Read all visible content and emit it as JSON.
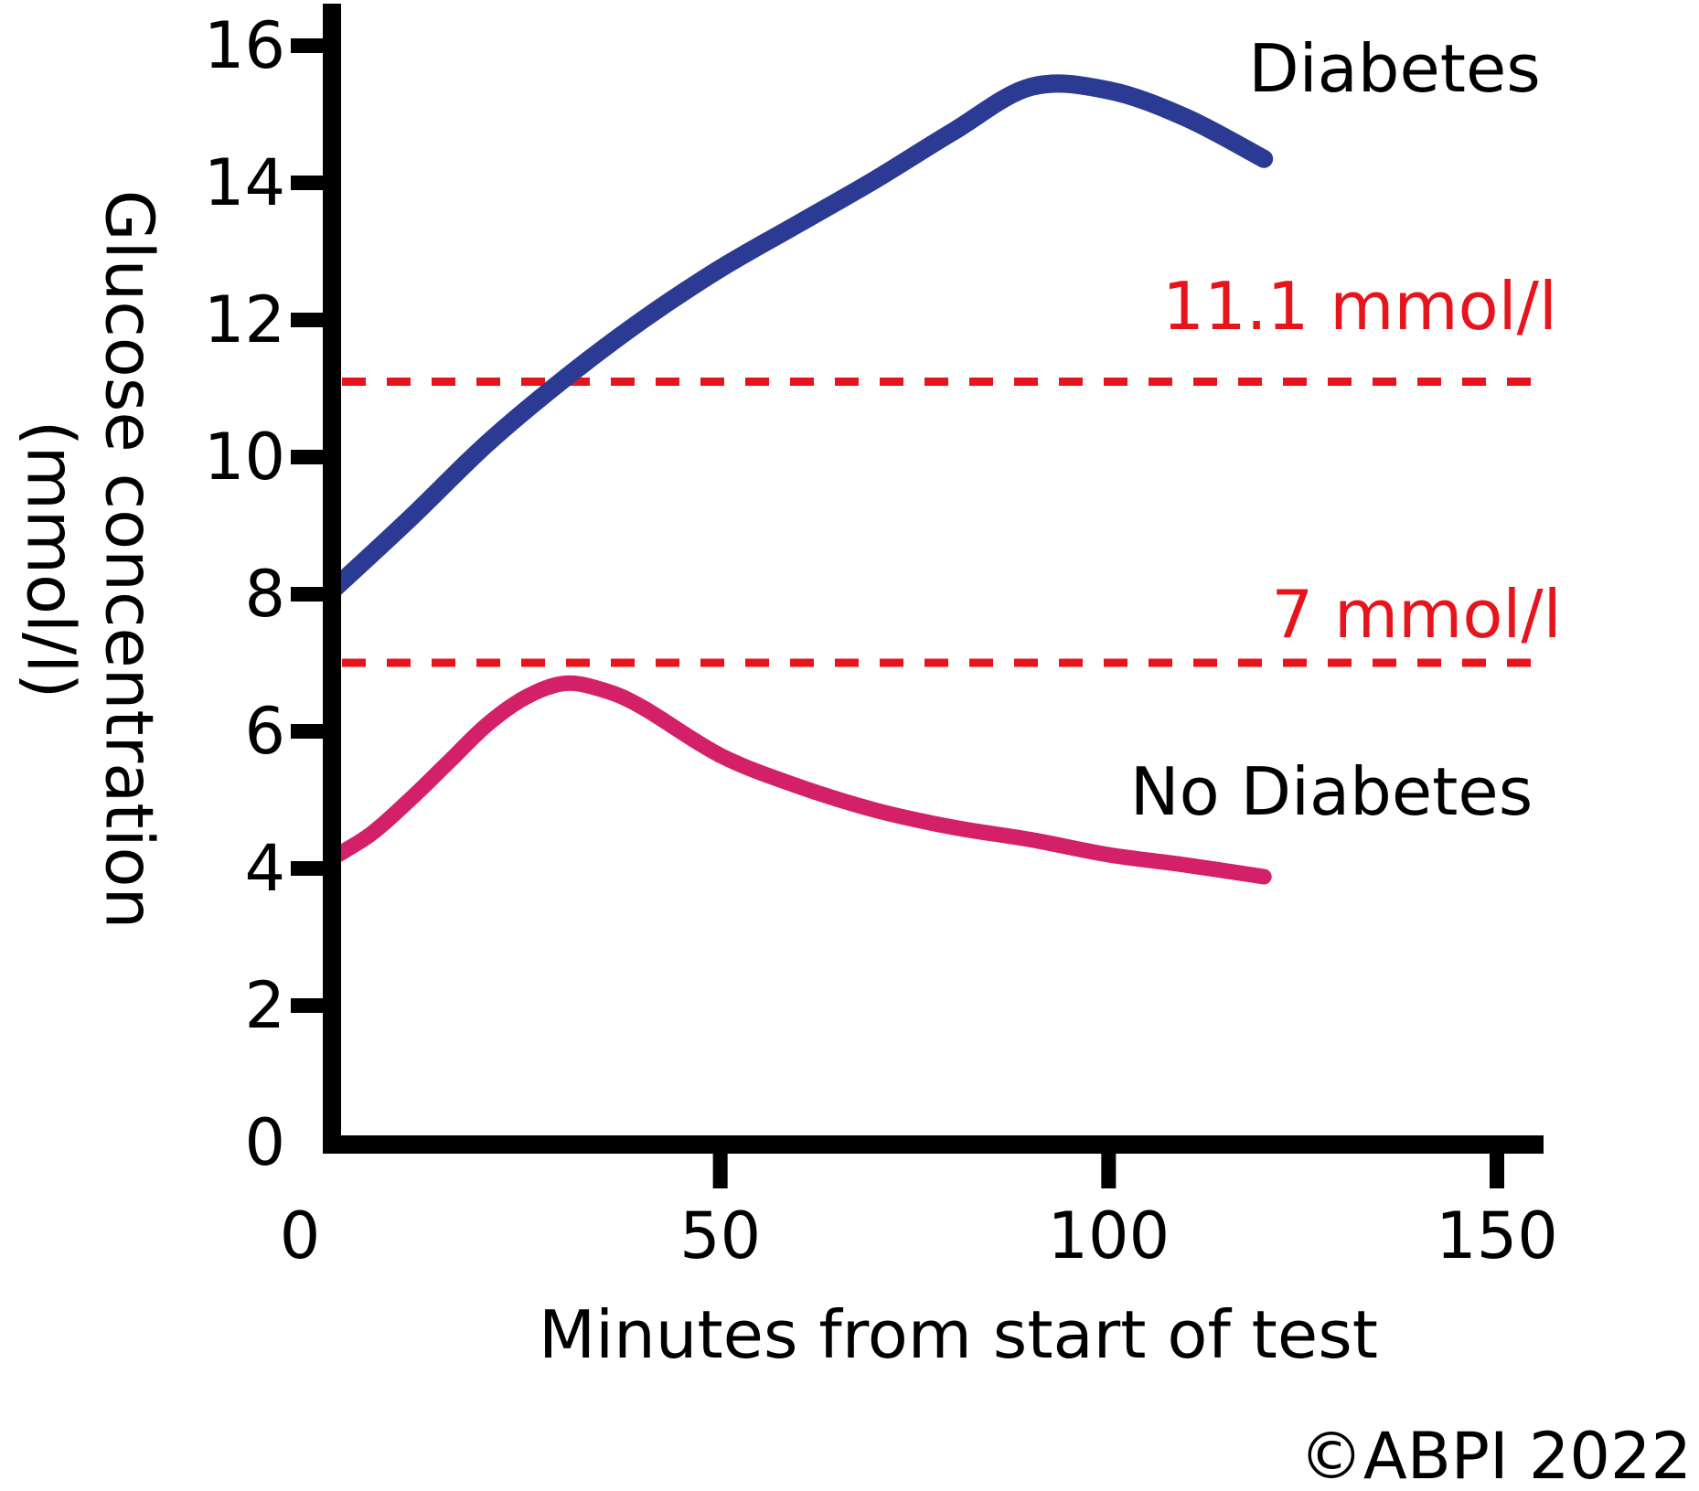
{
  "chart_data": {
    "type": "line",
    "title": "",
    "xlabel": "Minutes from start of test",
    "ylabel_line1": "Glucose concentration",
    "ylabel_line2": "(mmol/l)",
    "x_ticks": [
      0,
      50,
      100,
      150
    ],
    "y_ticks": [
      0,
      2,
      4,
      6,
      8,
      10,
      12,
      14,
      16
    ],
    "xlim": [
      0,
      156
    ],
    "ylim": [
      0,
      16.6
    ],
    "grid": false,
    "legend_position": "inline-annotations",
    "series": [
      {
        "name": "Diabetes",
        "color": "#2b3a92",
        "x": [
          0,
          10,
          20,
          30,
          40,
          50,
          60,
          70,
          80,
          90,
          100,
          110,
          120
        ],
        "y": [
          8.05,
          9.1,
          10.2,
          11.15,
          12.0,
          12.75,
          13.4,
          14.05,
          14.75,
          15.4,
          15.35,
          14.95,
          14.35
        ]
      },
      {
        "name": "No Diabetes",
        "color": "#d32068",
        "x": [
          0,
          5,
          10,
          15,
          20,
          25,
          30,
          35,
          40,
          50,
          60,
          70,
          80,
          90,
          100,
          110,
          120
        ],
        "y": [
          4.15,
          4.5,
          5.0,
          5.55,
          6.1,
          6.5,
          6.7,
          6.6,
          6.35,
          5.65,
          5.2,
          4.85,
          4.6,
          4.42,
          4.2,
          4.05,
          3.88
        ]
      }
    ],
    "thresholds": [
      {
        "label": "11.1 mmol/l",
        "value": 11.1,
        "color": "#e8141c",
        "style": "dashed"
      },
      {
        "label": "7 mmol/l",
        "value": 7,
        "color": "#e8141c",
        "style": "dashed"
      }
    ]
  },
  "copyright": "©ABPI 2022",
  "colors": {
    "axis": "#000000",
    "diabetes_line": "#2b3a92",
    "no_diabetes_line": "#d32068",
    "threshold_red": "#e8141c",
    "background": "#ffffff"
  }
}
